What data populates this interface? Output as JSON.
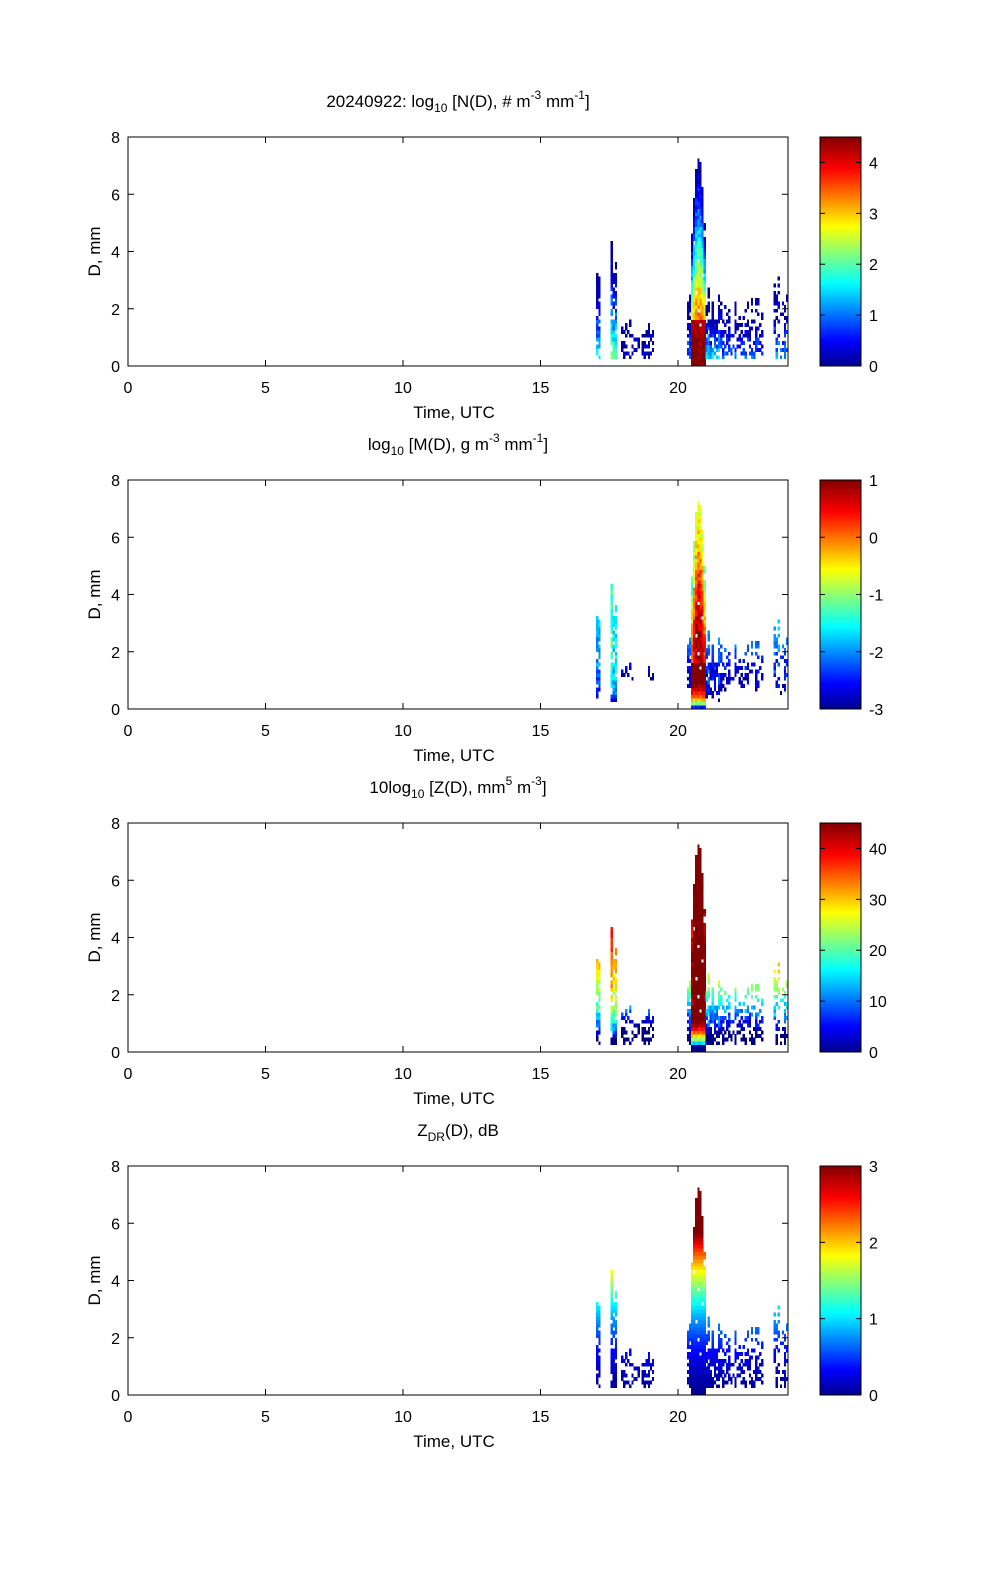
{
  "figure": {
    "date": "20240922",
    "colormap": "jet"
  },
  "chart_data": [
    {
      "type": "heatmap",
      "title": "20240922: log10 [N(D), # m-3 mm-1]",
      "title_parts": {
        "prefix": "20240922: log",
        "sub": "10",
        "body": " [N(D), # m",
        "sup1": "-3",
        "mid": " mm",
        "sup2": "-1",
        "end": "]"
      },
      "xlabel": "Time, UTC",
      "ylabel": "D, mm",
      "xlim": [
        0,
        24
      ],
      "ylim": [
        0,
        8
      ],
      "xticks": [
        0,
        5,
        10,
        15,
        20
      ],
      "yticks": [
        0,
        2,
        4,
        6,
        8
      ],
      "clim": [
        0,
        4.5
      ],
      "cticks": [
        0,
        1,
        2,
        3,
        4
      ],
      "quantity": "N"
    },
    {
      "type": "heatmap",
      "title": "log10 [M(D), g m-3 mm-1]",
      "title_parts": {
        "prefix": "log",
        "sub": "10",
        "body": " [M(D), g m",
        "sup1": "-3",
        "mid": " mm",
        "sup2": "-1",
        "end": "]"
      },
      "xlabel": "Time, UTC",
      "ylabel": "D, mm",
      "xlim": [
        0,
        24
      ],
      "ylim": [
        0,
        8
      ],
      "xticks": [
        0,
        5,
        10,
        15,
        20
      ],
      "yticks": [
        0,
        2,
        4,
        6,
        8
      ],
      "clim": [
        -3,
        1
      ],
      "cticks": [
        -3,
        -2,
        -1,
        0,
        1
      ],
      "quantity": "M"
    },
    {
      "type": "heatmap",
      "title": "10log10 [Z(D), mm5 m-3]",
      "title_parts": {
        "prefix": "10log",
        "sub": "10",
        "body": " [Z(D),  mm",
        "sup1": "5",
        "mid": " m",
        "sup2": "-3",
        "end": "]"
      },
      "xlabel": "Time, UTC",
      "ylabel": "D, mm",
      "xlim": [
        0,
        24
      ],
      "ylim": [
        0,
        8
      ],
      "xticks": [
        0,
        5,
        10,
        15,
        20
      ],
      "yticks": [
        0,
        2,
        4,
        6,
        8
      ],
      "clim": [
        0,
        45
      ],
      "cticks": [
        0,
        10,
        20,
        30,
        40
      ],
      "quantity": "Z"
    },
    {
      "type": "heatmap",
      "title": "ZDR(D), dB",
      "title_parts": {
        "prefix": "Z",
        "sub": "DR",
        "body": "(D), dB",
        "sup1": "",
        "mid": "",
        "sup2": "",
        "end": ""
      },
      "xlabel": "Time, UTC",
      "ylabel": "D, mm",
      "xlim": [
        0,
        24
      ],
      "ylim": [
        0,
        8
      ],
      "xticks": [
        0,
        5,
        10,
        15,
        20
      ],
      "yticks": [
        0,
        2,
        4,
        6,
        8
      ],
      "clim": [
        0,
        3
      ],
      "cticks": [
        0,
        1,
        2,
        3
      ],
      "quantity": "ZDR"
    }
  ],
  "rain_events": [
    {
      "t0": 17.0,
      "t1": 17.15,
      "dmax": 3.7,
      "nmax": 1.8,
      "kind": "shower"
    },
    {
      "t0": 17.55,
      "t1": 17.75,
      "dmax": 5.8,
      "nmax": 2.4,
      "kind": "shower"
    },
    {
      "t0": 17.95,
      "t1": 19.1,
      "dmax": 1.6,
      "nmax": 0.6,
      "kind": "drizzle"
    },
    {
      "t0": 20.3,
      "t1": 20.5,
      "dmax": 2.6,
      "nmax": 1.2,
      "kind": "shower"
    },
    {
      "t0": 20.5,
      "t1": 21.0,
      "dmax": 7.3,
      "nmax": 4.6,
      "kind": "core"
    },
    {
      "t0": 21.0,
      "t1": 21.5,
      "dmax": 2.8,
      "nmax": 1.8,
      "kind": "tail"
    },
    {
      "t0": 21.5,
      "t1": 23.1,
      "dmax": 2.4,
      "nmax": 1.2,
      "kind": "drizzle"
    },
    {
      "t0": 23.5,
      "t1": 24.0,
      "dmax": 3.3,
      "nmax": 1.4,
      "kind": "drizzle"
    }
  ]
}
